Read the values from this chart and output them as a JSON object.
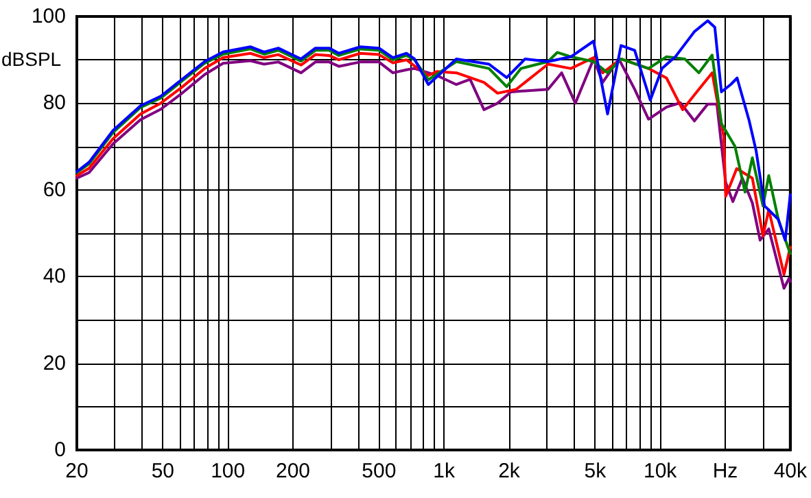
{
  "chart_data": {
    "type": "line",
    "ylabel": "dBSPL",
    "log": "x",
    "grid": true,
    "marker": "none",
    "line_style": "solid",
    "xlim": [
      20,
      40000
    ],
    "ylim": [
      0,
      100
    ],
    "xticks": [
      20,
      {
        "value": 30,
        "label": null
      },
      {
        "value": 40,
        "label": null
      },
      50,
      {
        "value": 60,
        "label": null
      },
      {
        "value": 70,
        "label": null
      },
      {
        "value": 80,
        "label": null
      },
      {
        "value": 90,
        "label": null
      },
      100,
      200,
      {
        "value": 300,
        "label": null
      },
      {
        "value": 400,
        "label": null
      },
      500,
      {
        "value": 600,
        "label": null
      },
      {
        "value": 700,
        "label": null
      },
      {
        "value": 800,
        "label": null
      },
      {
        "value": 900,
        "label": null
      },
      {
        "value": 1000,
        "label": "1k"
      },
      {
        "value": 2000,
        "label": "2k"
      },
      {
        "value": 3000,
        "label": null
      },
      {
        "value": 4000,
        "label": null
      },
      {
        "value": 5000,
        "label": "5k"
      },
      {
        "value": 6000,
        "label": null
      },
      {
        "value": 7000,
        "label": null
      },
      {
        "value": 8000,
        "label": null
      },
      {
        "value": 9000,
        "label": null
      },
      {
        "value": 10000,
        "label": "10k"
      },
      {
        "value": 20000,
        "label": "Hz"
      },
      {
        "value": 30000,
        "label": null
      },
      {
        "value": 40000,
        "label": "40k"
      }
    ],
    "yticks": [
      0,
      {
        "value": 10,
        "label": null
      },
      20,
      {
        "value": 30,
        "label": null
      },
      40,
      {
        "value": 50,
        "label": null
      },
      60,
      {
        "value": 70,
        "label": null
      },
      80,
      {
        "value": 90,
        "label": null
      },
      100
    ],
    "series": [
      {
        "color": "#800080",
        "x": [
          20,
          22.8,
          29.4,
          39.4,
          48.9,
          61,
          78,
          95,
          127,
          147,
          171,
          218,
          254,
          294,
          326,
          410,
          500,
          580,
          670,
          730,
          925,
          1140,
          1320,
          1530,
          1770,
          2040,
          3028,
          3500,
          4050,
          4920,
          5420,
          6440,
          7620,
          8830,
          10700,
          12400,
          14400,
          16600,
          18300,
          20100,
          21700,
          24000,
          26700,
          29000,
          31800,
          37400,
          39500,
          40000
        ],
        "values": [
          62.7,
          64,
          70.6,
          76.2,
          78.6,
          82.2,
          86.6,
          89.2,
          89.8,
          89,
          89.5,
          87,
          89.5,
          89.5,
          88.5,
          89.5,
          89.5,
          87,
          87.7,
          88,
          86.4,
          84.3,
          85.5,
          78.5,
          80,
          82.6,
          83.2,
          87,
          80,
          90.2,
          84.8,
          90.2,
          83.2,
          76.3,
          79.1,
          80.1,
          75.9,
          79.8,
          79.8,
          61.7,
          57.3,
          62.7,
          57,
          48.4,
          51,
          37.3,
          39.6,
          38.9
        ]
      },
      {
        "color": "#ff0000",
        "x": [
          20,
          22.8,
          29.4,
          39.4,
          48.9,
          61,
          78,
          95,
          127,
          147,
          171,
          218,
          254,
          294,
          326,
          410,
          500,
          580,
          670,
          730,
          846,
          925,
          1140,
          1530,
          1770,
          2160,
          3028,
          3860,
          4920,
          5420,
          6590,
          8830,
          10700,
          12700,
          15100,
          17400,
          19700,
          20100,
          22600,
          26700,
          29900,
          31800,
          37400,
          40000
        ],
        "values": [
          63.3,
          65,
          71.8,
          77.5,
          80,
          83.6,
          88,
          90.5,
          91.5,
          90.5,
          91.2,
          88.8,
          91.2,
          91,
          90,
          91.5,
          91.2,
          89.3,
          90,
          88.6,
          86.4,
          87.3,
          87,
          84.8,
          82.3,
          83.2,
          89,
          88,
          90.5,
          87,
          90.2,
          88,
          85.8,
          78.5,
          83.2,
          87,
          72.2,
          58.5,
          64.9,
          62.7,
          49.4,
          55.4,
          40.5,
          46.8
        ]
      },
      {
        "color": "#008000",
        "x": [
          20,
          22.8,
          29.4,
          39.4,
          48.9,
          61,
          78,
          95,
          127,
          147,
          171,
          218,
          254,
          294,
          326,
          410,
          500,
          580,
          670,
          730,
          846,
          1140,
          1614,
          1950,
          2270,
          3028,
          3340,
          3860,
          4920,
          5710,
          6590,
          8830,
          10700,
          13000,
          15100,
          17400,
          19200,
          22200,
          24700,
          26700,
          29900,
          31800,
          35200,
          39000,
          40000
        ],
        "values": [
          64,
          66,
          73.2,
          79,
          81.2,
          85,
          89.2,
          91.3,
          92.5,
          91.3,
          92.2,
          89.7,
          92.2,
          92.2,
          91,
          92.5,
          92.2,
          90,
          91,
          90,
          85.4,
          89.6,
          88,
          83.8,
          88,
          89.6,
          91.7,
          90.7,
          89.6,
          87,
          90.2,
          88,
          90.7,
          90.2,
          87,
          91.1,
          75.3,
          70,
          59.5,
          67.4,
          56.3,
          63.3,
          53.2,
          46.8,
          45.3
        ]
      },
      {
        "color": "#0000ff",
        "x": [
          20,
          22.8,
          29.4,
          39.4,
          48.9,
          61,
          78,
          95,
          127,
          147,
          171,
          218,
          254,
          294,
          326,
          410,
          500,
          580,
          670,
          730,
          846,
          1140,
          1614,
          1950,
          2372,
          3028,
          3860,
          4920,
          5710,
          6590,
          7620,
          9000,
          10200,
          11800,
          14400,
          16600,
          17900,
          19200,
          21200,
          22700,
          25800,
          27800,
          30400,
          35200,
          37900,
          40000
        ],
        "values": [
          64.2,
          66.4,
          73.7,
          79.4,
          81.6,
          85.4,
          89.6,
          91.8,
          93,
          91.8,
          92.7,
          90.2,
          92.7,
          92.7,
          91.5,
          93,
          92.7,
          90.5,
          91.5,
          90.2,
          84.3,
          90.2,
          89,
          85.9,
          90.2,
          89.6,
          90.7,
          94.3,
          77.5,
          93.3,
          92.2,
          80.7,
          88,
          90.8,
          96.5,
          99,
          97.5,
          82.6,
          84.3,
          85.8,
          76,
          69,
          56.3,
          53.2,
          48.4,
          58.9
        ]
      }
    ]
  }
}
